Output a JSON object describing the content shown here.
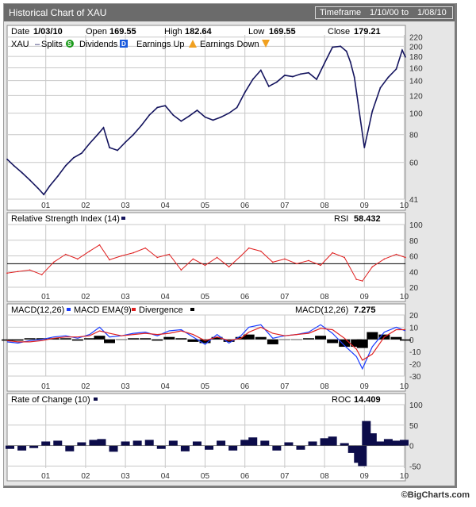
{
  "header": {
    "title": "Historical Chart of XAU",
    "timeframe_label": "Timeframe",
    "timeframe_from": "1/10/00",
    "timeframe_to_word": "to",
    "timeframe_to": "1/08/10"
  },
  "quote": {
    "date_label": "Date",
    "date": "1/03/10",
    "open_label": "Open",
    "open": "169.55",
    "high_label": "High",
    "high": "182.64",
    "low_label": "Low",
    "low": "169.55",
    "close_label": "Close",
    "close": "179.21"
  },
  "legend": {
    "symbol": "XAU",
    "splits": "Splits",
    "dividends": "Dividends",
    "earnings_up": "Earnings Up",
    "earnings_down": "Earnings Down",
    "splits_icon": "S",
    "dividends_icon": "D"
  },
  "footer": {
    "credit": "©BigCharts.com"
  },
  "colors": {
    "price": "#14145e",
    "rsi": "#e02020",
    "macd": "#1a3cff",
    "macd_ema": "#e02020",
    "divergence": "#000000",
    "roc": "#0c0c4a",
    "grid": "#c8c8c8",
    "panel_bg": "#ffffff"
  },
  "chart_data": [
    {
      "type": "line",
      "title": "XAU",
      "x_ticks": [
        "01",
        "02",
        "03",
        "04",
        "05",
        "06",
        "07",
        "08",
        "09",
        "10"
      ],
      "xlim": [
        2000.03,
        2010.03
      ],
      "y_scale": "log",
      "ylim": [
        41,
        225
      ],
      "y_ticks": [
        "41",
        "60",
        "80",
        "100",
        "120",
        "140",
        "160",
        "180",
        "200",
        "220"
      ],
      "x": [
        2000.03,
        2000.2,
        2000.4,
        2000.6,
        2000.8,
        2000.95,
        2001.1,
        2001.3,
        2001.5,
        2001.7,
        2001.9,
        2002.1,
        2002.3,
        2002.45,
        2002.6,
        2002.8,
        2003.0,
        2003.2,
        2003.4,
        2003.6,
        2003.8,
        2004.0,
        2004.2,
        2004.4,
        2004.6,
        2004.8,
        2005.0,
        2005.2,
        2005.4,
        2005.6,
        2005.8,
        2006.0,
        2006.2,
        2006.4,
        2006.6,
        2006.8,
        2007.0,
        2007.2,
        2007.4,
        2007.6,
        2007.8,
        2008.0,
        2008.2,
        2008.4,
        2008.55,
        2008.65,
        2008.75,
        2008.85,
        2009.0,
        2009.2,
        2009.4,
        2009.6,
        2009.8,
        2009.95,
        2010.03
      ],
      "values": [
        62,
        58,
        54,
        50,
        46,
        43,
        47,
        52,
        58,
        63,
        66,
        73,
        80,
        86,
        70,
        68,
        74,
        80,
        88,
        98,
        106,
        108,
        98,
        92,
        97,
        103,
        96,
        93,
        96,
        100,
        106,
        124,
        142,
        156,
        132,
        138,
        148,
        146,
        150,
        152,
        142,
        168,
        198,
        200,
        190,
        170,
        145,
        108,
        70,
        102,
        130,
        145,
        158,
        192,
        179
      ]
    },
    {
      "type": "line",
      "title": "Relative Strength Index (14)",
      "series": [
        {
          "name": "RSI",
          "latest": "58.432"
        }
      ],
      "ylim": [
        20,
        100
      ],
      "y_ticks": [
        "20",
        "40",
        "60",
        "80",
        "100"
      ],
      "reference_line": 50,
      "x_ticks": [
        "01",
        "02",
        "03",
        "04",
        "05",
        "06",
        "07",
        "08",
        "09",
        "10"
      ],
      "xlim": [
        2000.03,
        2010.03
      ],
      "x": [
        2000.03,
        2000.3,
        2000.6,
        2000.9,
        2001.2,
        2001.5,
        2001.8,
        2002.1,
        2002.35,
        2002.6,
        2002.9,
        2003.2,
        2003.5,
        2003.8,
        2004.1,
        2004.4,
        2004.7,
        2005.0,
        2005.3,
        2005.6,
        2005.9,
        2006.1,
        2006.4,
        2006.7,
        2007.0,
        2007.3,
        2007.6,
        2007.9,
        2008.2,
        2008.5,
        2008.8,
        2008.95,
        2009.2,
        2009.5,
        2009.8,
        2010.03
      ],
      "values": [
        38,
        40,
        42,
        36,
        52,
        62,
        56,
        66,
        74,
        55,
        60,
        64,
        70,
        58,
        62,
        42,
        56,
        48,
        58,
        46,
        60,
        70,
        66,
        52,
        56,
        50,
        54,
        48,
        64,
        58,
        30,
        28,
        46,
        56,
        62,
        58
      ]
    },
    {
      "type": "line",
      "title": "MACD(12,26)",
      "series": [
        {
          "name": "MACD(12,26)",
          "latest": "7.275",
          "values": [
            -2,
            -3,
            -1,
            0,
            2,
            3,
            1,
            4,
            10,
            2,
            3,
            5,
            6,
            3,
            7,
            8,
            2,
            -4,
            4,
            -3,
            3,
            10,
            12,
            1,
            3,
            4,
            6,
            12,
            5,
            -5,
            -14,
            -24,
            -6,
            6,
            10,
            7
          ]
        },
        {
          "name": "MACD EMA(9)",
          "values": [
            -1,
            -2,
            -2,
            -1,
            1,
            2,
            2,
            3,
            7,
            5,
            3,
            4,
            5,
            4,
            5,
            7,
            4,
            -1,
            2,
            -1,
            1,
            6,
            10,
            5,
            3,
            4,
            5,
            9,
            8,
            1,
            -8,
            -17,
            -12,
            2,
            8,
            8
          ]
        },
        {
          "name": "Divergence",
          "values": [
            -1,
            -1,
            1,
            1,
            1,
            1,
            -1,
            1,
            3,
            -3,
            0,
            1,
            1,
            -1,
            2,
            1,
            -2,
            -3,
            2,
            -2,
            2,
            4,
            2,
            -4,
            0,
            0,
            1,
            3,
            -3,
            -6,
            -6,
            -7,
            6,
            4,
            2,
            -1
          ]
        }
      ],
      "ylim": [
        -30,
        20
      ],
      "y_ticks": [
        "-30",
        "-20",
        "-10",
        "0",
        "10",
        "20"
      ],
      "x_ticks": [
        "01",
        "02",
        "03",
        "04",
        "05",
        "06",
        "07",
        "08",
        "09",
        "10"
      ],
      "xlim": [
        2000.03,
        2010.03
      ],
      "x": [
        2000.03,
        2000.3,
        2000.6,
        2000.9,
        2001.2,
        2001.5,
        2001.8,
        2002.1,
        2002.35,
        2002.6,
        2002.9,
        2003.2,
        2003.5,
        2003.8,
        2004.1,
        2004.4,
        2004.7,
        2005.0,
        2005.3,
        2005.6,
        2005.9,
        2006.1,
        2006.4,
        2006.7,
        2007.0,
        2007.3,
        2007.6,
        2007.9,
        2008.2,
        2008.5,
        2008.8,
        2008.95,
        2009.2,
        2009.5,
        2009.8,
        2010.03
      ]
    },
    {
      "type": "bar",
      "title": "Rate of Change (10)",
      "series": [
        {
          "name": "ROC",
          "latest": "14.409"
        }
      ],
      "ylim": [
        -55,
        100
      ],
      "y_ticks": [
        "-50",
        "0",
        "50",
        "100"
      ],
      "x_ticks": [
        "01",
        "02",
        "03",
        "04",
        "05",
        "06",
        "07",
        "08",
        "09",
        "10"
      ],
      "xlim": [
        2000.03,
        2010.03
      ],
      "x": [
        2000.1,
        2000.4,
        2000.7,
        2001.0,
        2001.3,
        2001.6,
        2001.9,
        2002.2,
        2002.4,
        2002.7,
        2003.0,
        2003.3,
        2003.6,
        2003.9,
        2004.2,
        2004.5,
        2004.8,
        2005.1,
        2005.4,
        2005.7,
        2006.0,
        2006.2,
        2006.5,
        2006.8,
        2007.1,
        2007.4,
        2007.7,
        2008.0,
        2008.2,
        2008.5,
        2008.7,
        2008.85,
        2008.95,
        2009.05,
        2009.2,
        2009.4,
        2009.6,
        2009.8,
        2010.0
      ],
      "values": [
        -8,
        -12,
        -6,
        10,
        12,
        -14,
        8,
        14,
        16,
        -15,
        10,
        12,
        14,
        -8,
        12,
        -14,
        10,
        -10,
        12,
        -12,
        14,
        20,
        12,
        -12,
        8,
        -10,
        10,
        18,
        22,
        6,
        -18,
        -42,
        -50,
        60,
        30,
        10,
        16,
        12,
        14
      ]
    }
  ]
}
